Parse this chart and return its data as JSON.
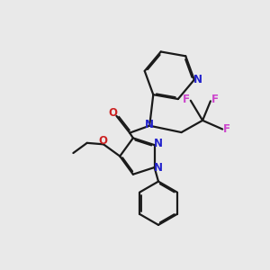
{
  "bg_color": "#e9e9e9",
  "bond_color": "#1a1a1a",
  "n_color": "#2222cc",
  "o_color": "#cc2222",
  "f_color": "#cc44cc",
  "lw": 1.6,
  "dbo": 0.055,
  "xlim": [
    0,
    10
  ],
  "ylim": [
    0,
    10
  ]
}
